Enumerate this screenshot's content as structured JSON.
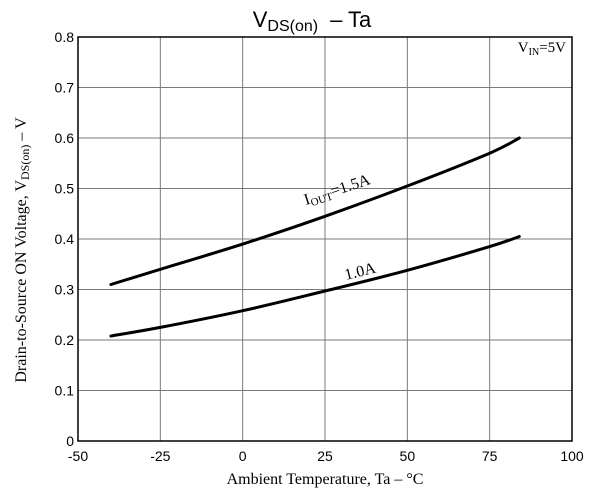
{
  "chart_data": {
    "type": "line",
    "title_main": "V",
    "title_sub": "DS(on)",
    "title_rest": "–  Ta",
    "xlabel": "Ambient Temperature, Ta  –  °C",
    "ylabel_main": "Drain-to-Source ON Voltage, V",
    "ylabel_sub": "DS(on)",
    "ylabel_rest": "  –  V",
    "xlim": [
      -50,
      100
    ],
    "ylim": [
      0,
      0.8
    ],
    "x_ticks": [
      -50,
      -25,
      0,
      25,
      50,
      75,
      100
    ],
    "x_tick_labels": [
      "-50",
      "-25",
      "0",
      "25",
      "50",
      "75",
      "100"
    ],
    "y_ticks": [
      0,
      0.1,
      0.2,
      0.3,
      0.4,
      0.5,
      0.6,
      0.7,
      0.8
    ],
    "y_tick_labels": [
      "0",
      "0.1",
      "0.2",
      "0.3",
      "0.4",
      "0.5",
      "0.6",
      "0.7",
      "0.8"
    ],
    "grid": true,
    "condition": {
      "main": "V",
      "sub": "IN",
      "rest": "=5V"
    },
    "series": [
      {
        "label_main": "I",
        "label_sub": "OUT",
        "label_rest": "=1.5A",
        "x": [
          -40,
          -25,
          0,
          25,
          50,
          75,
          84
        ],
        "values": [
          0.31,
          0.34,
          0.39,
          0.445,
          0.505,
          0.57,
          0.6
        ]
      },
      {
        "label_main": "",
        "label_sub": "",
        "label_rest": "1.0A",
        "x": [
          -40,
          -25,
          0,
          25,
          50,
          75,
          84
        ],
        "values": [
          0.208,
          0.225,
          0.258,
          0.297,
          0.338,
          0.385,
          0.405
        ]
      }
    ]
  }
}
